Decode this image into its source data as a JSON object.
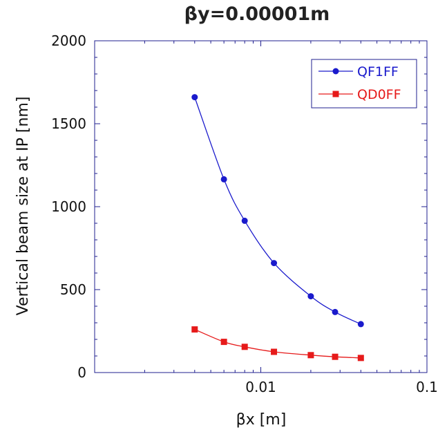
{
  "chart_data": {
    "type": "line",
    "title": "βy=0.00001m",
    "xlabel": "βx [m]",
    "ylabel": "Vertical beam size at IP [nm]",
    "xscale": "log",
    "xlim": [
      0.001,
      0.1
    ],
    "ylim": [
      0,
      2000
    ],
    "x_ticks": [
      {
        "value": 0.01,
        "label": "0.01"
      },
      {
        "value": 0.1,
        "label": "0.1"
      }
    ],
    "y_ticks": [
      {
        "value": 0,
        "label": "0"
      },
      {
        "value": 500,
        "label": "500"
      },
      {
        "value": 1000,
        "label": "1000"
      },
      {
        "value": 1500,
        "label": "1500"
      },
      {
        "value": 2000,
        "label": "2000"
      }
    ],
    "grid": false,
    "legend_position": "top-right",
    "series": [
      {
        "name": "QF1FF",
        "color": "#1a1acc",
        "marker": "circle",
        "x": [
          0.004,
          0.006,
          0.008,
          0.012,
          0.02,
          0.028,
          0.04
        ],
        "y": [
          1660,
          1165,
          915,
          660,
          460,
          365,
          292
        ]
      },
      {
        "name": "QD0FF",
        "color": "#e61a1a",
        "marker": "square",
        "x": [
          0.004,
          0.006,
          0.008,
          0.012,
          0.02,
          0.028,
          0.04
        ],
        "y": [
          260,
          185,
          155,
          125,
          105,
          95,
          88
        ]
      }
    ]
  }
}
